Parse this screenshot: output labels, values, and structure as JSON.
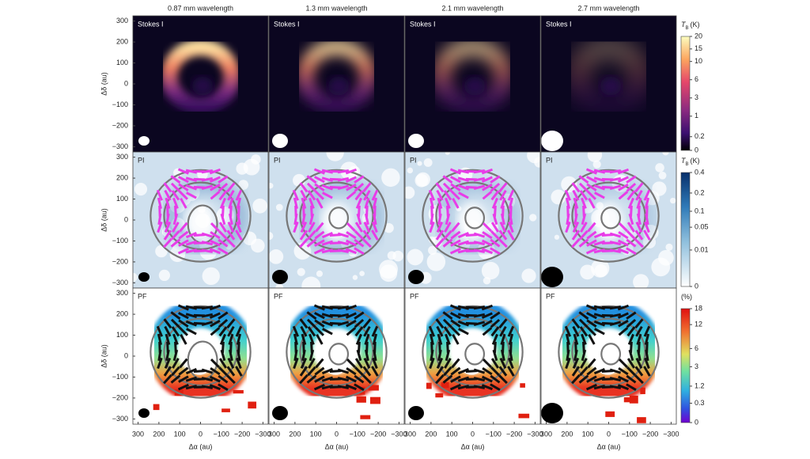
{
  "columns": [
    "0.87 mm wavelength",
    "1.3 mm wavelength",
    "2.1 mm wavelength",
    "2.7 mm wavelength"
  ],
  "rows": [
    {
      "panel_label": "Stokes I",
      "colorbar": {
        "symbol": "T",
        "subscript": "B",
        "unit": "(K)",
        "ticks": [
          20,
          15,
          10,
          6,
          3,
          1,
          0.2,
          0
        ]
      }
    },
    {
      "panel_label": "PI",
      "colorbar": {
        "symbol": "T",
        "subscript": "B",
        "unit": "(K)",
        "ticks": [
          0.4,
          0.2,
          0.1,
          0.05,
          0.01,
          0
        ]
      }
    },
    {
      "panel_label": "PF",
      "colorbar": {
        "unit": "(%)",
        "ticks": [
          18,
          12,
          6,
          3,
          1.2,
          0.3,
          0
        ]
      }
    }
  ],
  "y_axis": {
    "label": "Δδ (au)",
    "lim": [
      -325,
      325
    ],
    "ticks": [
      300,
      200,
      100,
      0,
      {
        "value": -100,
        "label": "−100"
      },
      {
        "value": -200,
        "label": "−200"
      },
      {
        "value": -300,
        "label": "−300"
      }
    ]
  },
  "x_axis": {
    "label": "Δα (au)",
    "lim": [
      325,
      -325
    ],
    "ticks": [
      300,
      200,
      100,
      0,
      {
        "value": -100,
        "label": "−100"
      },
      {
        "value": -200,
        "label": "−200"
      },
      {
        "value": -300,
        "label": "−300"
      }
    ]
  }
}
